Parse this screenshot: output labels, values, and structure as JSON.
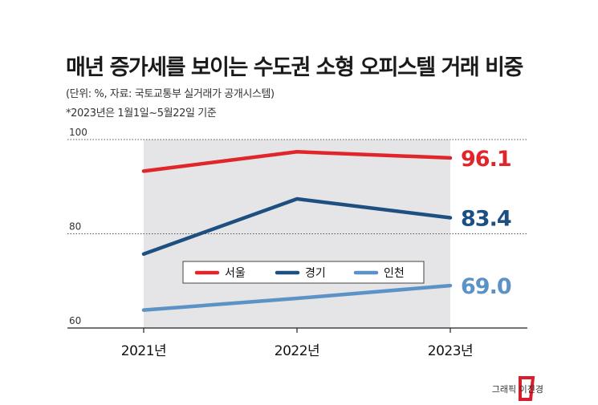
{
  "header": {
    "title": "매년 증가세를 보이는 수도권 소형 오피스텔 거래 비중",
    "unit_source": "(단위: %, 자료: 국토교통부 실거래가 공개시스템)",
    "note": "*2023년은 1월1일~5월22일 기준"
  },
  "chart_data": {
    "type": "line",
    "categories": [
      "2021년",
      "2022년",
      "2023년"
    ],
    "yticks": [
      "100",
      "80",
      "60"
    ],
    "ylim": [
      60,
      100
    ],
    "grid": true,
    "legend_position": "center",
    "series": [
      {
        "name": "서울",
        "values": [
          93.3,
          97.4,
          96.1
        ],
        "color": "#e0262b",
        "end_label": "96.1"
      },
      {
        "name": "경기",
        "values": [
          75.7,
          87.4,
          83.4
        ],
        "color": "#1d4f80",
        "end_label": "83.4"
      },
      {
        "name": "인천",
        "values": [
          63.8,
          66.3,
          69.0
        ],
        "color": "#5b93c6",
        "end_label": "69.0"
      }
    ]
  },
  "footer": {
    "credit": "그래픽 이진경",
    "logo_color": "#d81e2c"
  }
}
